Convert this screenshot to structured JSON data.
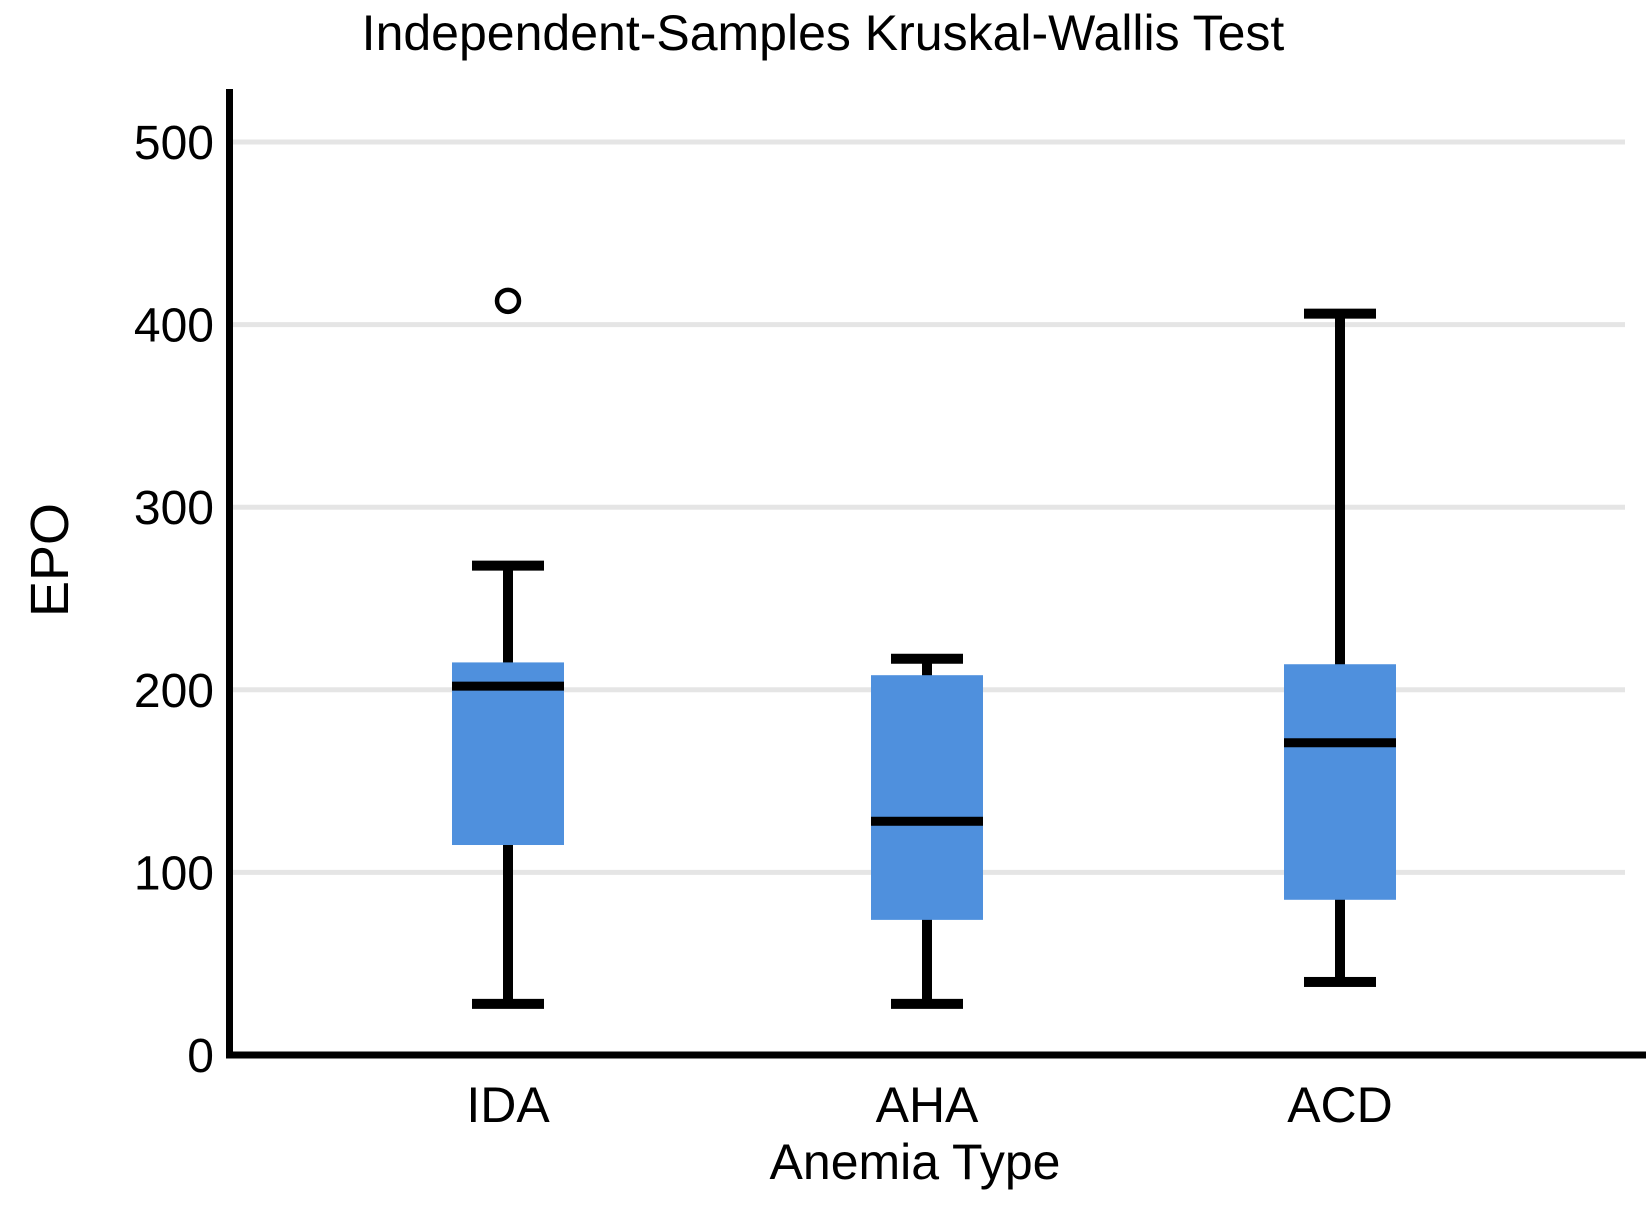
{
  "chart_data": {
    "type": "boxplot",
    "title": "Independent-Samples Kruskal-Wallis Test",
    "xlabel": "Anemia Type",
    "ylabel": "EPO",
    "categories": [
      "IDA",
      "AHA",
      "ACD"
    ],
    "yticks": [
      0,
      100,
      200,
      300,
      400,
      500
    ],
    "ylim": [
      0,
      530
    ],
    "grid": "horizontal",
    "legend": "none",
    "colors": {
      "box_fill": "#4f90dd",
      "line": "#000000",
      "gridline": "#e5e5e5",
      "outlier_fill": "#ffffff",
      "text": "#000000"
    },
    "series": [
      {
        "name": "IDA",
        "whisker_low": 28,
        "q1": 115,
        "median": 202,
        "q3": 215,
        "whisker_high": 268,
        "outliers": [
          413
        ]
      },
      {
        "name": "AHA",
        "whisker_low": 28,
        "q1": 74,
        "median": 128,
        "q3": 208,
        "whisker_high": 217,
        "outliers": []
      },
      {
        "name": "ACD",
        "whisker_low": 40,
        "q1": 85,
        "median": 171,
        "q3": 214,
        "whisker_high": 406,
        "outliers": []
      }
    ]
  }
}
